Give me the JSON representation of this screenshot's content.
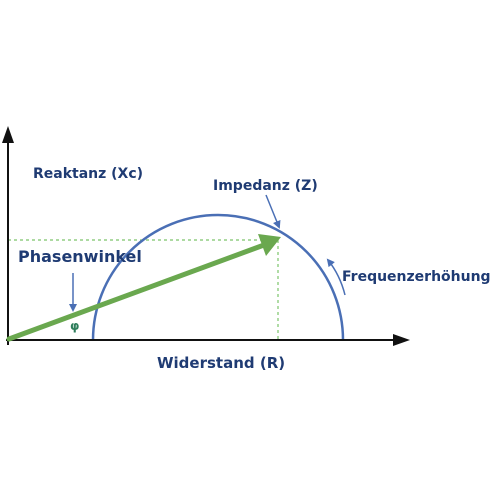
{
  "labels": {
    "y_axis": "Reaktanz (Xc)",
    "x_axis": "Widerstand (R)",
    "impedance": "Impedanz (Z)",
    "phase_angle": "Phasenwinkel",
    "phi": "φ",
    "frequency_increase": "Frequenzerhöhung"
  },
  "colors": {
    "axis": "#111111",
    "semicircle": "#4a6fb5",
    "vector": "#6aa84f",
    "guide": "#7cc46a",
    "annotation_arrow": "#4a6fb5",
    "text": "#1f3b73",
    "phi": "#2e7d5b"
  },
  "icons": {
    "y_axis_arrow": "arrowhead-up",
    "x_axis_arrow": "arrowhead-right",
    "vector_arrow": "arrowhead",
    "frequency_arrow": "curved-arrow"
  }
}
